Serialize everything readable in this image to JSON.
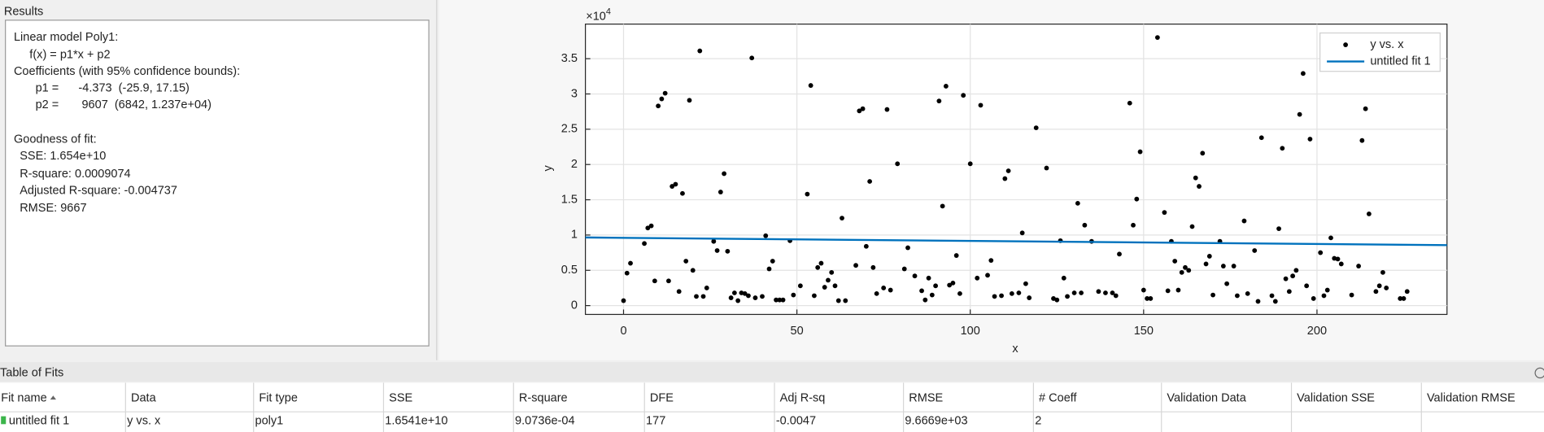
{
  "results": {
    "title": "Results",
    "lines": [
      "Linear model Poly1:",
      "f(x) = p1*x + p2",
      "Coefficients (with 95% confidence bounds):",
      "p1 =      -4.373  (-25.9, 17.15)",
      "p2 =       9607  (6842, 1.237e+04)",
      "Goodness of fit:",
      "SSE: 1.654e+10",
      "R-square: 0.0009074",
      "Adjusted R-square: -0.004737",
      "RMSE: 9667"
    ]
  },
  "chart_data": {
    "type": "scatter",
    "xlabel": "x",
    "ylabel": "y",
    "y_multiplier": {
      "base": "×10",
      "exponent": "4"
    },
    "xlim": [
      -11,
      237.5
    ],
    "ylim": [
      -1250,
      39900
    ],
    "xticks": [
      0,
      50,
      100,
      150,
      200
    ],
    "yticks": [
      {
        "value": 0,
        "label": "0"
      },
      {
        "value": 5000,
        "label": "0.5"
      },
      {
        "value": 10000,
        "label": "1"
      },
      {
        "value": 15000,
        "label": "1.5"
      },
      {
        "value": 20000,
        "label": "2"
      },
      {
        "value": 25000,
        "label": "2.5"
      },
      {
        "value": 30000,
        "label": "3"
      },
      {
        "value": 35000,
        "label": "3.5"
      }
    ],
    "grid": true,
    "legend": "northeast",
    "series": [
      {
        "name": "y vs. x",
        "color": "#000000",
        "x": [
          0,
          1,
          2,
          6,
          7,
          8,
          9,
          10,
          11,
          12,
          13,
          14,
          15,
          16,
          17,
          18,
          19,
          20,
          21,
          22,
          23,
          24,
          26,
          27,
          28,
          29,
          30,
          31,
          32,
          33,
          34,
          35,
          36,
          37,
          38,
          40,
          41,
          42,
          43,
          44,
          45,
          46,
          48,
          49,
          51,
          53,
          54,
          55,
          56,
          57,
          58,
          59,
          60,
          61,
          62,
          63,
          64,
          67,
          68,
          69,
          70,
          71,
          72,
          73,
          75,
          76,
          77,
          79,
          81,
          82,
          84,
          86,
          87,
          88,
          89,
          90,
          91,
          92,
          93,
          94,
          95,
          96,
          97,
          98,
          100,
          102,
          103,
          105,
          106,
          107,
          109,
          110,
          111,
          112,
          114,
          115,
          116,
          117,
          119,
          122,
          124,
          125,
          126,
          127,
          128,
          130,
          131,
          132,
          133,
          135,
          137,
          139,
          141,
          142,
          143,
          146,
          147,
          148,
          149,
          150,
          151,
          152,
          154,
          156,
          157,
          158,
          159,
          160,
          161,
          162,
          163,
          164,
          165,
          166,
          167,
          168,
          169,
          170,
          172,
          173,
          174,
          176,
          177,
          179,
          180,
          182,
          183,
          184,
          187,
          188,
          189,
          190,
          191,
          192,
          193,
          194,
          195,
          196,
          197,
          198,
          199,
          201,
          202,
          203,
          204,
          205,
          206,
          207,
          210,
          212,
          213,
          214,
          215,
          217,
          218,
          219,
          220,
          224,
          225,
          226
        ],
        "values": [
          700,
          4600,
          6000,
          8800,
          11000,
          11300,
          3500,
          28300,
          29300,
          30100,
          3500,
          16900,
          17200,
          2000,
          15900,
          6300,
          29100,
          5000,
          1300,
          36100,
          1300,
          2500,
          9100,
          7800,
          16100,
          18700,
          7700,
          1100,
          1800,
          700,
          1800,
          1700,
          1400,
          35100,
          1100,
          1300,
          9900,
          5200,
          6300,
          800,
          800,
          800,
          9200,
          1500,
          2800,
          15800,
          31200,
          1400,
          5400,
          6000,
          2600,
          3600,
          4700,
          2800,
          700,
          12400,
          700,
          5700,
          27600,
          27900,
          8400,
          17600,
          5400,
          1700,
          2500,
          27800,
          2200,
          20100,
          5200,
          8200,
          4200,
          2100,
          800,
          3900,
          1500,
          2800,
          29000,
          14100,
          31100,
          2900,
          3200,
          7100,
          1700,
          29800,
          20100,
          3900,
          28400,
          4300,
          6400,
          1300,
          1400,
          18000,
          19100,
          1700,
          1800,
          10300,
          3100,
          1100,
          25200,
          19500,
          1000,
          800,
          9200,
          3900,
          1300,
          1800,
          14500,
          1800,
          11400,
          9100,
          2000,
          1800,
          1800,
          1400,
          7300,
          28700,
          11400,
          15100,
          21800,
          2200,
          1000,
          1000,
          38000,
          13200,
          2100,
          9100,
          6300,
          2200,
          4700,
          5400,
          5000,
          11200,
          18100,
          16900,
          21600,
          5900,
          7000,
          1500,
          9100,
          5600,
          3100,
          5600,
          1400,
          12000,
          1700,
          7800,
          600,
          23800,
          1400,
          600,
          10900,
          22300,
          3800,
          2000,
          4200,
          5000,
          27100,
          32900,
          2800,
          23600,
          1000,
          7500,
          1400,
          2200,
          9600,
          6700,
          6600,
          5900,
          1500,
          5600,
          23400,
          27900,
          13000,
          2000,
          2800,
          4700,
          2500,
          1000,
          1000,
          2000
        ]
      },
      {
        "name": "untitled fit 1",
        "color": "#0072bd",
        "type": "line",
        "x": [
          -11,
          237.5
        ],
        "values": [
          9655,
          8568
        ]
      }
    ]
  },
  "table": {
    "title": "Table of Fits",
    "headers": [
      "Fit name",
      "Data",
      "Fit type",
      "SSE",
      "R-square",
      "DFE",
      "Adj R-sq",
      "RMSE",
      "# Coeff",
      "Validation Data",
      "Validation SSE",
      "Validation RMSE"
    ],
    "rows": [
      [
        "untitled fit 1",
        "y vs. x",
        "poly1",
        "1.6541e+10",
        "9.0736e-04",
        "177",
        "-0.0047",
        "9.6669e+03",
        "2",
        "",
        "",
        ""
      ]
    ]
  }
}
